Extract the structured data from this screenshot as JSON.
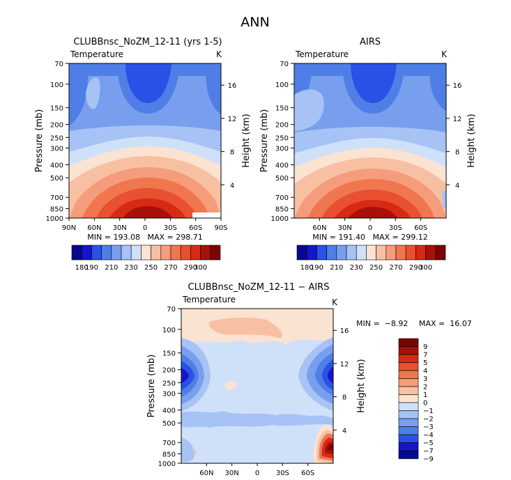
{
  "title": "ANN",
  "chart_data": [
    {
      "type": "heatmap",
      "title": "CLUBBnsc_NoZM_12-11 (yrs 1-5)",
      "left_label": "Temperature",
      "right_label": "K",
      "ylabel": "Pressure (mb)",
      "y2label": "Height (km)",
      "pressure_ticks": [
        "70",
        "100",
        "150",
        "200",
        "250",
        "300",
        "400",
        "500",
        "700",
        "850",
        "1000"
      ],
      "height_ticks": [
        "4",
        "8",
        "12",
        "16"
      ],
      "x_ticks": [
        "90N",
        "60N",
        "30N",
        "0",
        "30S",
        "60S",
        "90S"
      ],
      "stats": "MIN = 193.08   MAX = 298.71",
      "colorbar": {
        "labels": [
          "180",
          "190",
          "210",
          "230",
          "250",
          "270",
          "290",
          "300"
        ]
      }
    },
    {
      "type": "heatmap",
      "title": "AIRS",
      "left_label": "Temperature",
      "right_label": "K",
      "ylabel": "Pressure (mb)",
      "y2label": "Height (km)",
      "pressure_ticks": [
        "70",
        "100",
        "150",
        "200",
        "250",
        "300",
        "400",
        "500",
        "700",
        "850",
        "1000"
      ],
      "height_ticks": [
        "4",
        "8",
        "12",
        "16"
      ],
      "x_ticks": [
        "60N",
        "30N",
        "0",
        "30S",
        "60S"
      ],
      "stats": "MIN = 191.40   MAX = 299.12",
      "colorbar": {
        "labels": [
          "180",
          "190",
          "210",
          "230",
          "250",
          "270",
          "290",
          "300"
        ]
      }
    },
    {
      "type": "heatmap",
      "title": "CLUBBnsc_NoZM_12-11 − AIRS",
      "left_label": "Temperature",
      "right_label": "K",
      "ylabel": "Pressure (mb)",
      "y2label": "Height (km)",
      "pressure_ticks": [
        "70",
        "100",
        "150",
        "200",
        "250",
        "300",
        "400",
        "500",
        "700",
        "850",
        "1000"
      ],
      "height_ticks": [
        "4",
        "8",
        "12",
        "16"
      ],
      "x_ticks": [
        "60N",
        "30N",
        "0",
        "30S",
        "60S"
      ],
      "stats_min": "MIN =  −8.92",
      "stats_max": "MAX =  16.07",
      "colorbar": {
        "labels": [
          "9",
          "7",
          "5",
          "4",
          "3",
          "2",
          "1",
          "0",
          "−1",
          "−2",
          "−3",
          "−4",
          "−5",
          "−7",
          "−9"
        ]
      }
    }
  ],
  "colors": {
    "temp_scale": [
      "#08088f",
      "#1515c9",
      "#2b50e6",
      "#4f7fe6",
      "#789fee",
      "#a7c2f5",
      "#cfe0f9",
      "#fbe3d2",
      "#f8c0a3",
      "#f59c7c",
      "#f07650",
      "#e9502f",
      "#d72a15",
      "#a8100a",
      "#7a0404"
    ],
    "diff_scale": [
      "#7a0404",
      "#a8100a",
      "#d72a15",
      "#e9502f",
      "#f07650",
      "#f59c7c",
      "#f8c0a3",
      "#fbe3d2",
      "#cfe0f9",
      "#a7c2f5",
      "#789fee",
      "#4f7fe6",
      "#2b50e6",
      "#1515c9",
      "#08088f"
    ]
  }
}
